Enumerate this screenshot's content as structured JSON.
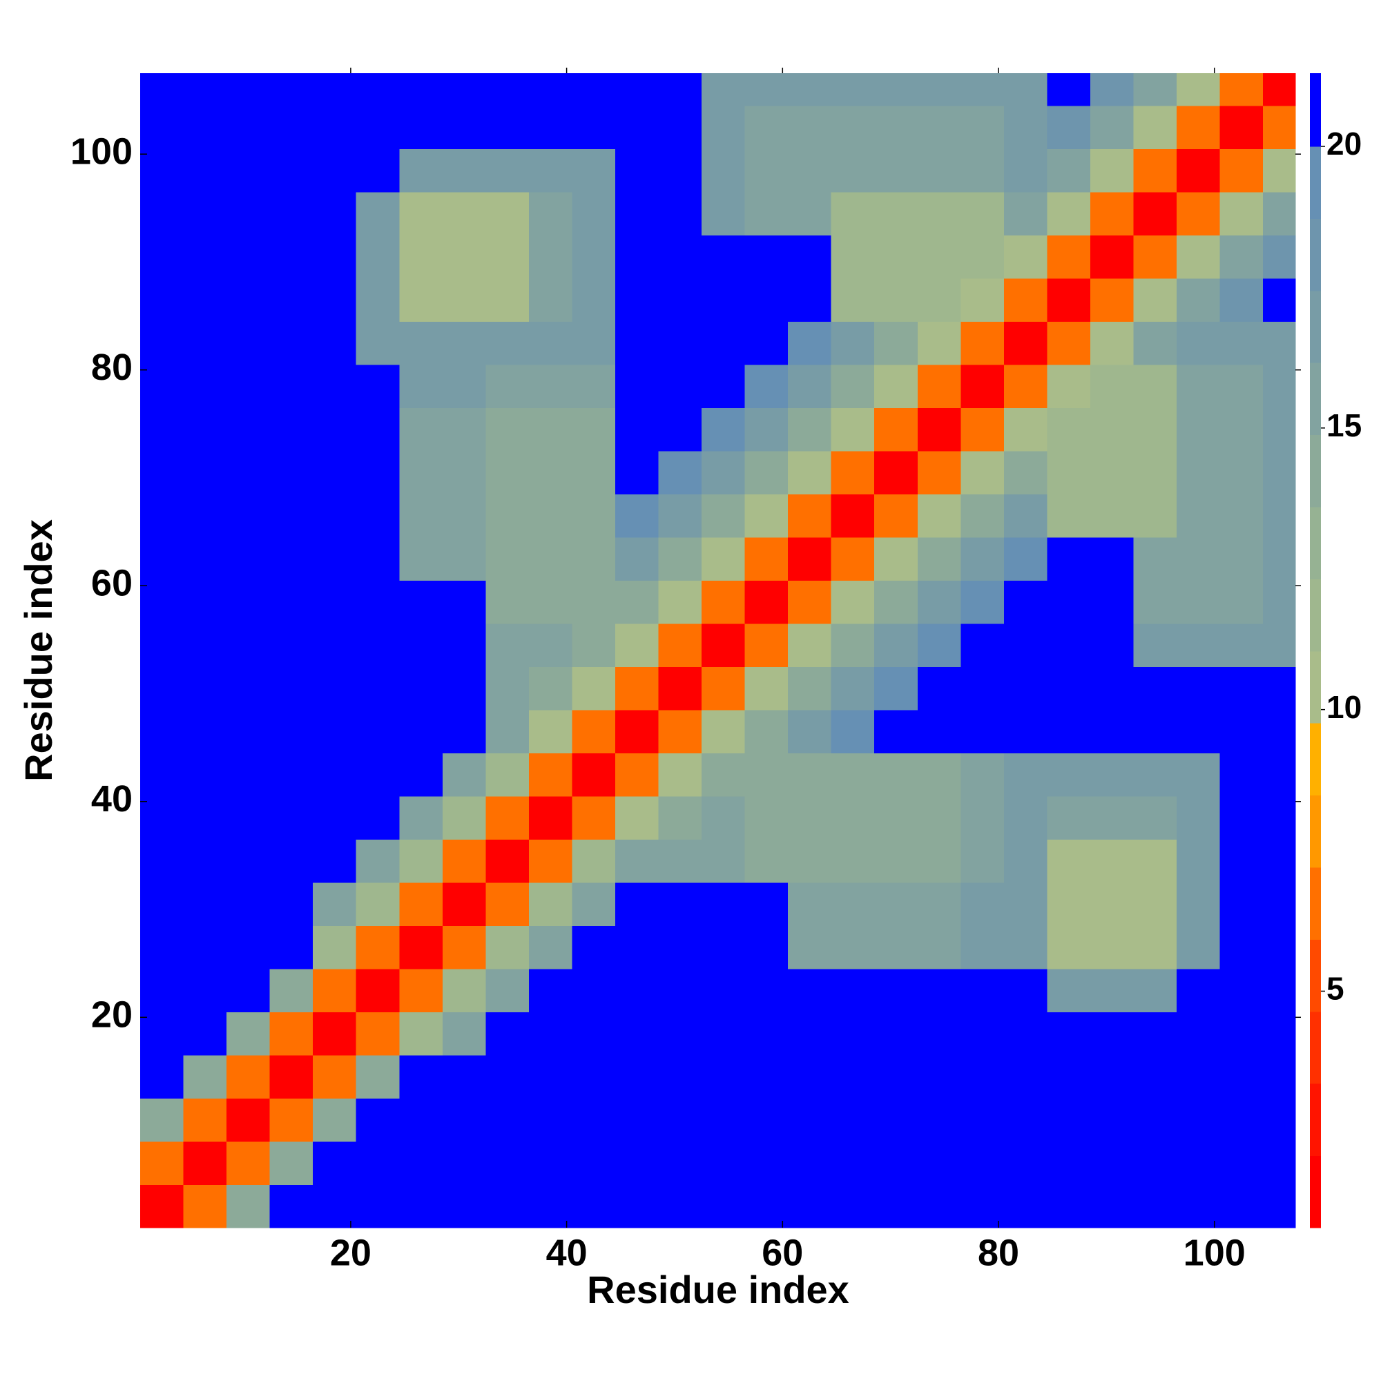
{
  "chart_data": {
    "type": "heatmap",
    "xlabel": "Residue index",
    "ylabel": "Residue index",
    "xlim": [
      0.5,
      107.5
    ],
    "ylim": [
      0.5,
      107.5
    ],
    "xticks": [
      20,
      40,
      60,
      80,
      100
    ],
    "yticks": [
      20,
      40,
      60,
      80,
      100
    ],
    "xbins": [
      0.5,
      4.5,
      8.5,
      12.5,
      16.5,
      20.5,
      24.5,
      28.5,
      32.5,
      36.5,
      40.5,
      44.5,
      48.5,
      52.5,
      56.5,
      60.5,
      64.5,
      68.5,
      72.5,
      76.5,
      80.5,
      84.5,
      88.5,
      92.5,
      96.5,
      100.5,
      104.5,
      107.5
    ],
    "ybins": [
      0.5,
      4.5,
      8.5,
      12.5,
      16.5,
      20.5,
      24.5,
      28.5,
      32.5,
      36.5,
      40.5,
      44.5,
      48.5,
      52.5,
      56.5,
      60.5,
      64.5,
      68.5,
      72.5,
      76.5,
      80.5,
      84.5,
      88.5,
      92.5,
      96.5,
      100.5,
      104.5,
      107.5
    ],
    "values": [
      [
        2,
        7,
        14,
        22,
        22,
        22,
        22,
        22,
        22,
        22,
        22,
        22,
        22,
        22,
        22,
        22,
        22,
        22,
        22,
        22,
        22,
        22,
        22,
        22,
        22,
        22,
        22
      ],
      [
        7,
        2,
        7,
        14,
        22,
        22,
        22,
        22,
        22,
        22,
        22,
        22,
        22,
        22,
        22,
        22,
        22,
        22,
        22,
        22,
        22,
        22,
        22,
        22,
        22,
        22,
        22
      ],
      [
        14,
        7,
        2,
        7,
        14,
        22,
        22,
        22,
        22,
        22,
        22,
        22,
        22,
        22,
        22,
        22,
        22,
        22,
        22,
        22,
        22,
        22,
        22,
        22,
        22,
        22,
        22
      ],
      [
        22,
        14,
        7,
        2,
        7,
        14,
        22,
        22,
        22,
        22,
        22,
        22,
        22,
        22,
        22,
        22,
        22,
        22,
        22,
        22,
        22,
        22,
        22,
        22,
        22,
        22,
        22
      ],
      [
        22,
        22,
        14,
        7,
        2,
        7,
        12,
        16,
        22,
        22,
        22,
        22,
        22,
        22,
        22,
        22,
        22,
        22,
        22,
        22,
        22,
        22,
        22,
        22,
        22,
        22,
        22
      ],
      [
        22,
        22,
        22,
        14,
        7,
        2,
        7,
        12,
        16,
        22,
        22,
        22,
        22,
        22,
        22,
        22,
        22,
        22,
        22,
        22,
        22,
        17,
        17,
        17,
        22,
        22,
        22
      ],
      [
        22,
        22,
        22,
        22,
        12,
        7,
        2,
        7,
        12,
        16,
        22,
        22,
        22,
        22,
        22,
        15,
        15,
        15,
        15,
        17,
        17,
        11,
        11,
        11,
        17,
        22,
        22
      ],
      [
        22,
        22,
        22,
        22,
        16,
        12,
        7,
        2,
        7,
        12,
        16,
        22,
        22,
        22,
        22,
        15,
        15,
        15,
        15,
        17,
        17,
        11,
        11,
        11,
        17,
        22,
        22
      ],
      [
        22,
        22,
        22,
        22,
        22,
        16,
        12,
        7,
        2,
        7,
        12,
        16,
        16,
        16,
        14,
        14,
        14,
        14,
        14,
        16,
        17,
        11,
        11,
        11,
        17,
        22,
        22
      ],
      [
        22,
        22,
        22,
        22,
        22,
        22,
        16,
        12,
        7,
        2,
        7,
        11,
        14,
        16,
        14,
        14,
        14,
        14,
        14,
        16,
        17,
        15,
        15,
        15,
        17,
        22,
        22
      ],
      [
        22,
        22,
        22,
        22,
        22,
        22,
        22,
        16,
        12,
        7,
        2,
        6,
        11,
        14,
        14,
        14,
        14,
        14,
        14,
        16,
        17,
        17,
        17,
        17,
        17,
        22,
        22
      ],
      [
        22,
        22,
        22,
        22,
        22,
        22,
        22,
        22,
        16,
        11,
        6,
        2,
        6,
        11,
        14,
        17,
        19,
        22,
        22,
        22,
        22,
        22,
        22,
        22,
        22,
        22,
        22
      ],
      [
        22,
        22,
        22,
        22,
        22,
        22,
        22,
        22,
        16,
        14,
        11,
        6,
        2,
        6,
        11,
        14,
        17,
        19,
        22,
        22,
        22,
        22,
        22,
        22,
        22,
        22,
        22
      ],
      [
        22,
        22,
        22,
        22,
        22,
        22,
        22,
        22,
        16,
        16,
        14,
        11,
        6,
        2,
        6,
        11,
        14,
        17,
        19,
        22,
        22,
        22,
        22,
        17,
        17,
        17,
        17
      ],
      [
        22,
        22,
        22,
        22,
        22,
        22,
        22,
        22,
        14,
        14,
        14,
        14,
        11,
        6,
        2,
        6,
        11,
        14,
        17,
        19,
        22,
        22,
        22,
        15,
        15,
        15,
        17
      ],
      [
        22,
        22,
        22,
        22,
        22,
        22,
        15,
        15,
        14,
        14,
        14,
        17,
        14,
        11,
        6,
        2,
        6,
        11,
        14,
        17,
        19,
        22,
        22,
        15,
        15,
        15,
        17
      ],
      [
        22,
        22,
        22,
        22,
        22,
        22,
        15,
        15,
        14,
        14,
        14,
        19,
        17,
        14,
        11,
        6,
        2,
        6,
        11,
        14,
        17,
        12,
        12,
        12,
        15,
        15,
        17
      ],
      [
        22,
        22,
        22,
        22,
        22,
        22,
        15,
        15,
        14,
        14,
        14,
        22,
        19,
        17,
        14,
        11,
        6,
        2,
        6,
        11,
        14,
        12,
        12,
        12,
        15,
        15,
        17
      ],
      [
        22,
        22,
        22,
        22,
        22,
        22,
        15,
        15,
        14,
        14,
        14,
        22,
        22,
        19,
        17,
        14,
        11,
        6,
        2,
        6,
        11,
        12,
        12,
        12,
        15,
        15,
        17
      ],
      [
        22,
        22,
        22,
        22,
        22,
        22,
        17,
        17,
        16,
        16,
        16,
        22,
        22,
        22,
        19,
        17,
        14,
        11,
        6,
        2,
        6,
        11,
        12,
        12,
        15,
        15,
        17
      ],
      [
        22,
        22,
        22,
        22,
        22,
        17,
        17,
        17,
        17,
        17,
        17,
        22,
        22,
        22,
        22,
        19,
        17,
        14,
        11,
        6,
        2,
        6,
        11,
        15,
        17,
        17,
        17
      ],
      [
        22,
        22,
        22,
        22,
        22,
        17,
        11,
        11,
        11,
        15,
        17,
        22,
        22,
        22,
        22,
        22,
        12,
        12,
        12,
        11,
        6,
        2,
        7,
        11,
        15,
        18,
        22
      ],
      [
        22,
        22,
        22,
        22,
        22,
        17,
        11,
        11,
        11,
        15,
        17,
        22,
        22,
        22,
        22,
        22,
        12,
        12,
        12,
        12,
        11,
        7,
        2,
        7,
        11,
        15,
        18
      ],
      [
        22,
        22,
        22,
        22,
        22,
        17,
        11,
        11,
        11,
        15,
        17,
        22,
        22,
        17,
        15,
        15,
        12,
        12,
        12,
        12,
        15,
        11,
        7,
        2,
        7,
        11,
        15
      ],
      [
        22,
        22,
        22,
        22,
        22,
        22,
        17,
        17,
        17,
        17,
        17,
        22,
        22,
        17,
        15,
        15,
        15,
        15,
        15,
        15,
        17,
        15,
        11,
        7,
        2,
        7,
        11
      ],
      [
        22,
        22,
        22,
        22,
        22,
        22,
        22,
        22,
        22,
        22,
        22,
        22,
        22,
        17,
        15,
        15,
        15,
        15,
        15,
        15,
        17,
        18,
        15,
        11,
        7,
        2,
        7
      ],
      [
        22,
        22,
        22,
        22,
        22,
        22,
        22,
        22,
        22,
        22,
        22,
        22,
        22,
        17,
        17,
        17,
        17,
        17,
        17,
        17,
        17,
        22,
        18,
        15,
        11,
        7,
        2
      ]
    ],
    "colorbar": {
      "zlim": [
        0.8,
        21.3
      ],
      "zticks": [
        5,
        10,
        15,
        20
      ],
      "levels": [
        0.8,
        2.08,
        3.36,
        4.64,
        5.92,
        7.2,
        8.48,
        9.76,
        11.04,
        12.32,
        13.6,
        14.88,
        16.16,
        17.44,
        18.72,
        20,
        21.3
      ],
      "colors": [
        "#ff0000",
        "#ff1400",
        "#ff3000",
        "#ff4a00",
        "#ff7000",
        "#ff9800",
        "#ffb000",
        "#a9bc8a",
        "#9fb78e",
        "#96b293",
        "#8caa99",
        "#82a3a0",
        "#789ca6",
        "#6e95ad",
        "#6690b4",
        "#0000ff"
      ]
    }
  }
}
